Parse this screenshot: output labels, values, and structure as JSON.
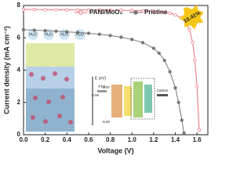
{
  "chart_data": {
    "type": "line",
    "x_label": "Voltage (V)",
    "y_label": "Current density (mA cm⁻²)",
    "xlim": [
      0,
      1.7
    ],
    "ylim": [
      0,
      8
    ],
    "xticks": [
      {
        "value": 0,
        "label": "0.0"
      },
      {
        "value": 0.2,
        "label": "0.2"
      },
      {
        "value": 0.4,
        "label": "0.4"
      },
      {
        "value": 0.6,
        "label": "0.6"
      },
      {
        "value": 0.8,
        "label": "0.8"
      },
      {
        "value": 1.0,
        "label": "1.0"
      },
      {
        "value": 1.2,
        "label": "1.2"
      },
      {
        "value": 1.4,
        "label": "1.4"
      },
      {
        "value": 1.6,
        "label": "1.6"
      }
    ],
    "yticks": [
      0,
      2,
      4,
      6,
      8
    ],
    "legend": "top",
    "annotation": "10.41%",
    "series": [
      {
        "name": "PANI/MoO₃",
        "color": "#e8707a",
        "marker": "open",
        "x": [
          0,
          0.1,
          0.2,
          0.3,
          0.4,
          0.5,
          0.6,
          0.7,
          0.8,
          0.9,
          1.0,
          1.1,
          1.2,
          1.3,
          1.35,
          1.4,
          1.45,
          1.5,
          1.53,
          1.56,
          1.58,
          1.6,
          1.62
        ],
        "values": [
          7.75,
          7.75,
          7.74,
          7.74,
          7.73,
          7.73,
          7.72,
          7.72,
          7.71,
          7.7,
          7.69,
          7.67,
          7.64,
          7.58,
          7.52,
          7.42,
          7.25,
          6.9,
          6.5,
          5.7,
          4.6,
          3.0,
          0.3
        ]
      },
      {
        "name": "Pristine",
        "color": "#777777",
        "marker": "filled",
        "x": [
          0,
          0.1,
          0.2,
          0.3,
          0.4,
          0.5,
          0.6,
          0.7,
          0.8,
          0.9,
          1.0,
          1.1,
          1.2,
          1.25,
          1.3,
          1.35,
          1.4,
          1.43,
          1.46,
          1.48
        ],
        "values": [
          6.5,
          6.47,
          6.44,
          6.41,
          6.37,
          6.33,
          6.28,
          6.22,
          6.14,
          6.04,
          5.9,
          5.7,
          5.35,
          5.05,
          4.6,
          3.9,
          2.9,
          2.0,
          0.9,
          0.1
        ]
      }
    ],
    "inset": {
      "axis_label": "E (eV)",
      "left_electrode": "FTO",
      "right_electrode": "Carbon",
      "levels": [
        "-3.97",
        "-4.56",
        "-6.65"
      ],
      "molecules": [
        "H₂O",
        "H₂O",
        "H₂O",
        "H₂O"
      ]
    }
  }
}
